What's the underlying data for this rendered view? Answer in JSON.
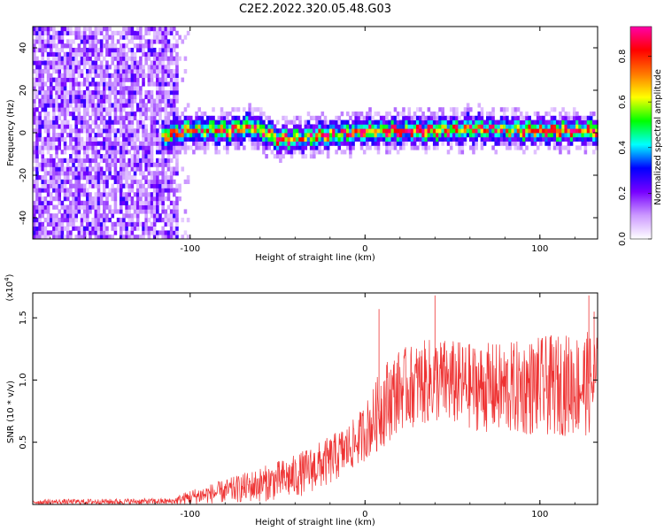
{
  "title": "C2E2.2022.320.05.48.G03",
  "chart_data": [
    {
      "type": "heatmap",
      "xlabel": "Height of straight line (km)",
      "ylabel": "Frequency (Hz)",
      "xlim": [
        -190,
        133
      ],
      "ylim": [
        -50,
        50
      ],
      "x_ticks": [
        -100,
        0,
        100
      ],
      "y_ticks": [
        -40,
        -20,
        0,
        20,
        40
      ],
      "colorbar": {
        "label": "Normalized spectral amplitude",
        "range": [
          0.0,
          0.93
        ],
        "ticks": [
          0.0,
          0.2,
          0.4,
          0.6,
          0.8
        ],
        "colormap": [
          "#ffffff",
          "#cc99ff",
          "#7700ff",
          "#0000ff",
          "#00ffff",
          "#00ff00",
          "#ffff00",
          "#ff7700",
          "#ff0000",
          "#ff00aa"
        ]
      },
      "description_data": {
        "noise_region_x": [
          -190,
          -108
        ],
        "signal_region_x": [
          -118,
          133
        ],
        "signal_frequency_track": [
          {
            "x": -118,
            "y": -3
          },
          {
            "x": -100,
            "y": 1
          },
          {
            "x": -80,
            "y": 0
          },
          {
            "x": -65,
            "y": 2
          },
          {
            "x": -50,
            "y": -4
          },
          {
            "x": -35,
            "y": -3
          },
          {
            "x": -20,
            "y": -2
          },
          {
            "x": 0,
            "y": 0
          },
          {
            "x": 30,
            "y": 0
          },
          {
            "x": 60,
            "y": 1
          },
          {
            "x": 100,
            "y": 0
          },
          {
            "x": 133,
            "y": 0
          }
        ]
      }
    },
    {
      "type": "line",
      "xlabel": "Height of straight line (km)",
      "ylabel": "SNR (10 * v/v)",
      "y_multiplier": "(x10",
      "y_multiplier_exp": "4",
      "y_multiplier_close": ")",
      "xlim": [
        -190,
        133
      ],
      "ylim": [
        0,
        1.7
      ],
      "x_ticks": [
        -100,
        0,
        100
      ],
      "y_ticks": [
        0.5,
        1.0,
        1.5
      ],
      "series_color": "#ee3333",
      "envelope": [
        {
          "x": -190,
          "low": 0.0,
          "high": 0.04
        },
        {
          "x": -110,
          "low": 0.0,
          "high": 0.05
        },
        {
          "x": -100,
          "low": 0.0,
          "high": 0.12
        },
        {
          "x": -80,
          "low": 0.01,
          "high": 0.2
        },
        {
          "x": -60,
          "low": 0.02,
          "high": 0.3
        },
        {
          "x": -40,
          "low": 0.05,
          "high": 0.4
        },
        {
          "x": -20,
          "low": 0.15,
          "high": 0.55
        },
        {
          "x": -5,
          "low": 0.3,
          "high": 0.7
        },
        {
          "x": 5,
          "low": 0.4,
          "high": 0.95
        },
        {
          "x": 10,
          "low": 0.45,
          "high": 1.15
        },
        {
          "x": 20,
          "low": 0.6,
          "high": 1.25
        },
        {
          "x": 40,
          "low": 0.65,
          "high": 1.35
        },
        {
          "x": 60,
          "low": 0.6,
          "high": 1.3
        },
        {
          "x": 80,
          "low": 0.55,
          "high": 1.3
        },
        {
          "x": 100,
          "low": 0.55,
          "high": 1.35
        },
        {
          "x": 133,
          "low": 0.55,
          "high": 1.4
        }
      ],
      "spikes": [
        {
          "x": 8,
          "y": 1.57
        },
        {
          "x": 40,
          "y": 1.68
        },
        {
          "x": 128,
          "y": 1.68
        },
        {
          "x": 131,
          "y": 1.55
        }
      ]
    }
  ]
}
